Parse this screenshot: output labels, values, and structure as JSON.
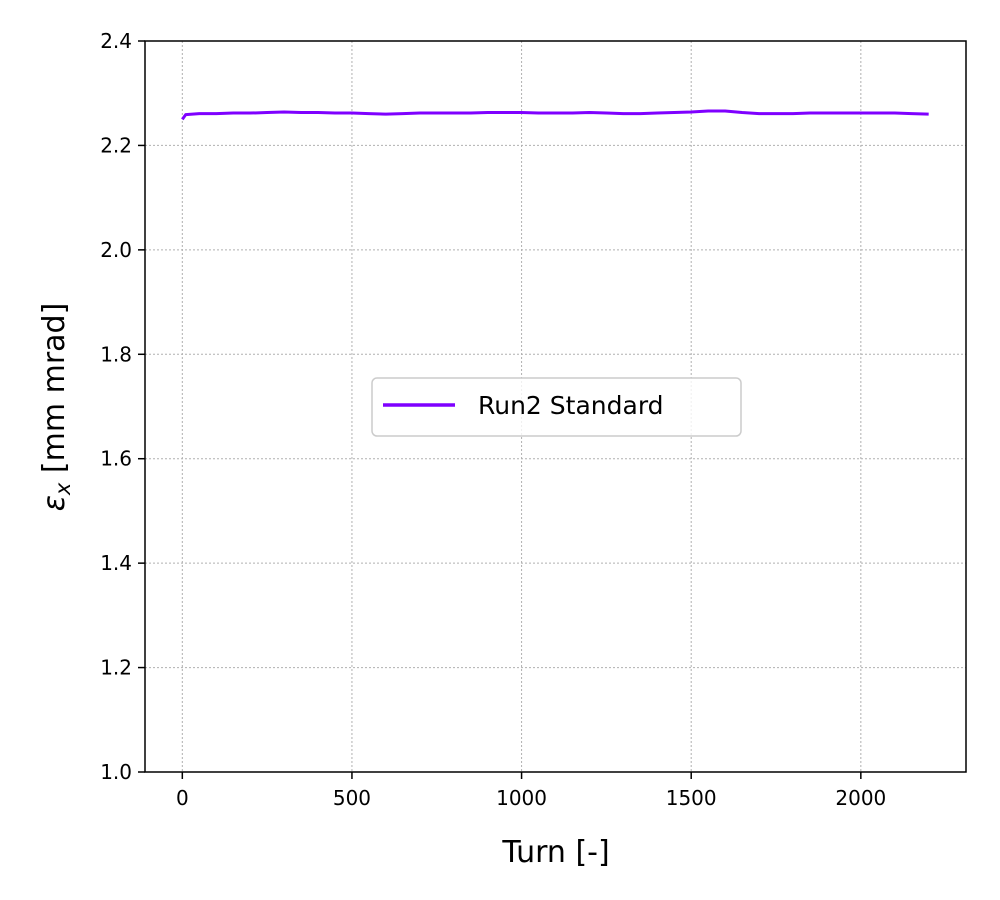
{
  "chart_data": {
    "type": "line",
    "title": "",
    "xlabel": "Turn [-]",
    "ylabel_symbol": "ε",
    "ylabel_subscript": "x",
    "ylabel_unit": " [mm mrad]",
    "xlim": [
      -110,
      2310
    ],
    "ylim": [
      1.0,
      2.4
    ],
    "xticks": [
      0,
      500,
      1000,
      1500,
      2000
    ],
    "xtick_labels": [
      "0",
      "500",
      "1000",
      "1500",
      "2000"
    ],
    "yticks": [
      1.0,
      1.2,
      1.4,
      1.6,
      1.8,
      2.0,
      2.2,
      2.4
    ],
    "ytick_labels": [
      "1.0",
      "1.2",
      "1.4",
      "1.6",
      "1.8",
      "2.0",
      "2.2",
      "2.4"
    ],
    "grid": true,
    "legend_position": "center",
    "series": [
      {
        "name": "Run2 Standard",
        "color": "#7f00ff",
        "x": [
          0,
          10,
          50,
          100,
          150,
          200,
          250,
          300,
          350,
          400,
          450,
          500,
          550,
          600,
          650,
          700,
          750,
          800,
          850,
          900,
          950,
          1000,
          1050,
          1100,
          1150,
          1200,
          1250,
          1300,
          1350,
          1400,
          1450,
          1500,
          1550,
          1600,
          1650,
          1700,
          1750,
          1800,
          1850,
          1900,
          1950,
          2000,
          2050,
          2100,
          2150,
          2200
        ],
        "y": [
          2.25,
          2.259,
          2.261,
          2.261,
          2.262,
          2.262,
          2.263,
          2.264,
          2.263,
          2.263,
          2.262,
          2.262,
          2.261,
          2.26,
          2.261,
          2.262,
          2.262,
          2.262,
          2.262,
          2.263,
          2.263,
          2.263,
          2.262,
          2.262,
          2.262,
          2.263,
          2.262,
          2.261,
          2.261,
          2.262,
          2.263,
          2.264,
          2.266,
          2.266,
          2.263,
          2.261,
          2.261,
          2.261,
          2.262,
          2.262,
          2.262,
          2.262,
          2.262,
          2.262,
          2.261,
          2.26
        ]
      }
    ]
  }
}
